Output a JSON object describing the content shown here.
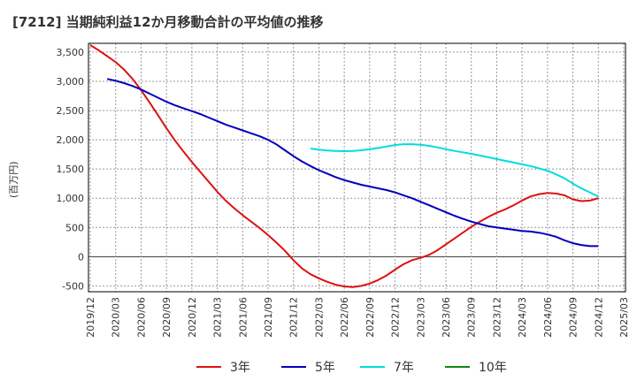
{
  "chart_data": {
    "type": "line",
    "title": "[7212]  当期純利益12か月移動合計の平均値の推移",
    "ylabel": "(百万円)",
    "xlabel": "",
    "ylim": [
      -600,
      3650
    ],
    "yticks": [
      -500,
      0,
      500,
      1000,
      1500,
      2000,
      2500,
      3000,
      3500
    ],
    "ytick_labels": [
      "-500",
      "0",
      "500",
      "1,000",
      "1,500",
      "2,000",
      "2,500",
      "3,000",
      "3,500"
    ],
    "xticks": [
      "2019/12",
      "2020/03",
      "2020/06",
      "2020/09",
      "2020/12",
      "2021/03",
      "2021/06",
      "2021/09",
      "2021/12",
      "2022/03",
      "2022/06",
      "2022/09",
      "2022/12",
      "2023/03",
      "2023/06",
      "2023/09",
      "2023/12",
      "2024/03",
      "2024/06",
      "2024/09",
      "2024/12",
      "2025/03"
    ],
    "grid": true,
    "legend_position": "bottom",
    "series": [
      {
        "name": "3年",
        "color": "#dd1111",
        "x": [
          "2019/12",
          "2020/01",
          "2020/02",
          "2020/03",
          "2020/04",
          "2020/05",
          "2020/06",
          "2020/07",
          "2020/08",
          "2020/09",
          "2020/10",
          "2020/11",
          "2020/12",
          "2021/01",
          "2021/02",
          "2021/03",
          "2021/04",
          "2021/05",
          "2021/06",
          "2021/07",
          "2021/08",
          "2021/09",
          "2021/10",
          "2021/11",
          "2021/12",
          "2022/01",
          "2022/02",
          "2022/03",
          "2022/04",
          "2022/05",
          "2022/06",
          "2022/07",
          "2022/08",
          "2022/09",
          "2022/10",
          "2022/11",
          "2022/12",
          "2023/01",
          "2023/02",
          "2023/03",
          "2023/04",
          "2023/05",
          "2023/06",
          "2023/07",
          "2023/08",
          "2023/09",
          "2023/10",
          "2023/11",
          "2023/12",
          "2024/01",
          "2024/02",
          "2024/03",
          "2024/04",
          "2024/05",
          "2024/06",
          "2024/07",
          "2024/08",
          "2024/09",
          "2024/10",
          "2024/11",
          "2024/12"
        ],
        "values": [
          3620,
          3530,
          3430,
          3330,
          3200,
          3040,
          2850,
          2640,
          2420,
          2200,
          1990,
          1800,
          1620,
          1450,
          1280,
          1110,
          960,
          830,
          710,
          600,
          490,
          370,
          240,
          100,
          -60,
          -200,
          -300,
          -370,
          -430,
          -480,
          -510,
          -520,
          -500,
          -460,
          -400,
          -320,
          -220,
          -130,
          -60,
          -20,
          30,
          110,
          210,
          310,
          410,
          510,
          600,
          680,
          750,
          810,
          880,
          960,
          1030,
          1070,
          1090,
          1080,
          1050,
          980,
          950,
          960,
          1000
        ]
      },
      {
        "name": "5年",
        "color": "#0000bb",
        "x": [
          "2020/02",
          "2020/03",
          "2020/04",
          "2020/05",
          "2020/06",
          "2020/07",
          "2020/08",
          "2020/09",
          "2020/10",
          "2020/11",
          "2020/12",
          "2021/01",
          "2021/02",
          "2021/03",
          "2021/04",
          "2021/05",
          "2021/06",
          "2021/07",
          "2021/08",
          "2021/09",
          "2021/10",
          "2021/11",
          "2021/12",
          "2022/01",
          "2022/02",
          "2022/03",
          "2022/04",
          "2022/05",
          "2022/06",
          "2022/07",
          "2022/08",
          "2022/09",
          "2022/10",
          "2022/11",
          "2022/12",
          "2023/01",
          "2023/02",
          "2023/03",
          "2023/04",
          "2023/05",
          "2023/06",
          "2023/07",
          "2023/08",
          "2023/09",
          "2023/10",
          "2023/11",
          "2023/12",
          "2024/01",
          "2024/02",
          "2024/03",
          "2024/04",
          "2024/05",
          "2024/06",
          "2024/07",
          "2024/08",
          "2024/09",
          "2024/10",
          "2024/11",
          "2024/12"
        ],
        "values": [
          3040,
          3010,
          2970,
          2920,
          2860,
          2790,
          2720,
          2650,
          2590,
          2540,
          2490,
          2440,
          2380,
          2320,
          2260,
          2210,
          2160,
          2110,
          2060,
          2000,
          1920,
          1820,
          1720,
          1630,
          1550,
          1480,
          1420,
          1360,
          1310,
          1270,
          1230,
          1200,
          1170,
          1140,
          1100,
          1050,
          1000,
          940,
          880,
          820,
          760,
          700,
          650,
          600,
          560,
          520,
          500,
          480,
          460,
          440,
          430,
          410,
          380,
          340,
          280,
          230,
          200,
          180,
          180
        ]
      },
      {
        "name": "7年",
        "color": "#00dddd",
        "x": [
          "2022/02",
          "2022/03",
          "2022/04",
          "2022/05",
          "2022/06",
          "2022/07",
          "2022/08",
          "2022/09",
          "2022/10",
          "2022/11",
          "2022/12",
          "2023/01",
          "2023/02",
          "2023/03",
          "2023/04",
          "2023/05",
          "2023/06",
          "2023/07",
          "2023/08",
          "2023/09",
          "2023/10",
          "2023/11",
          "2023/12",
          "2024/01",
          "2024/02",
          "2024/03",
          "2024/04",
          "2024/05",
          "2024/06",
          "2024/07",
          "2024/08",
          "2024/09",
          "2024/10",
          "2024/11",
          "2024/12"
        ],
        "values": [
          1850,
          1830,
          1815,
          1810,
          1805,
          1810,
          1820,
          1840,
          1860,
          1885,
          1910,
          1925,
          1925,
          1915,
          1895,
          1870,
          1840,
          1810,
          1785,
          1760,
          1730,
          1700,
          1670,
          1640,
          1610,
          1580,
          1550,
          1510,
          1470,
          1410,
          1340,
          1250,
          1170,
          1100,
          1030
        ]
      },
      {
        "name": "10年",
        "color": "#118811",
        "x": [],
        "values": []
      }
    ]
  }
}
